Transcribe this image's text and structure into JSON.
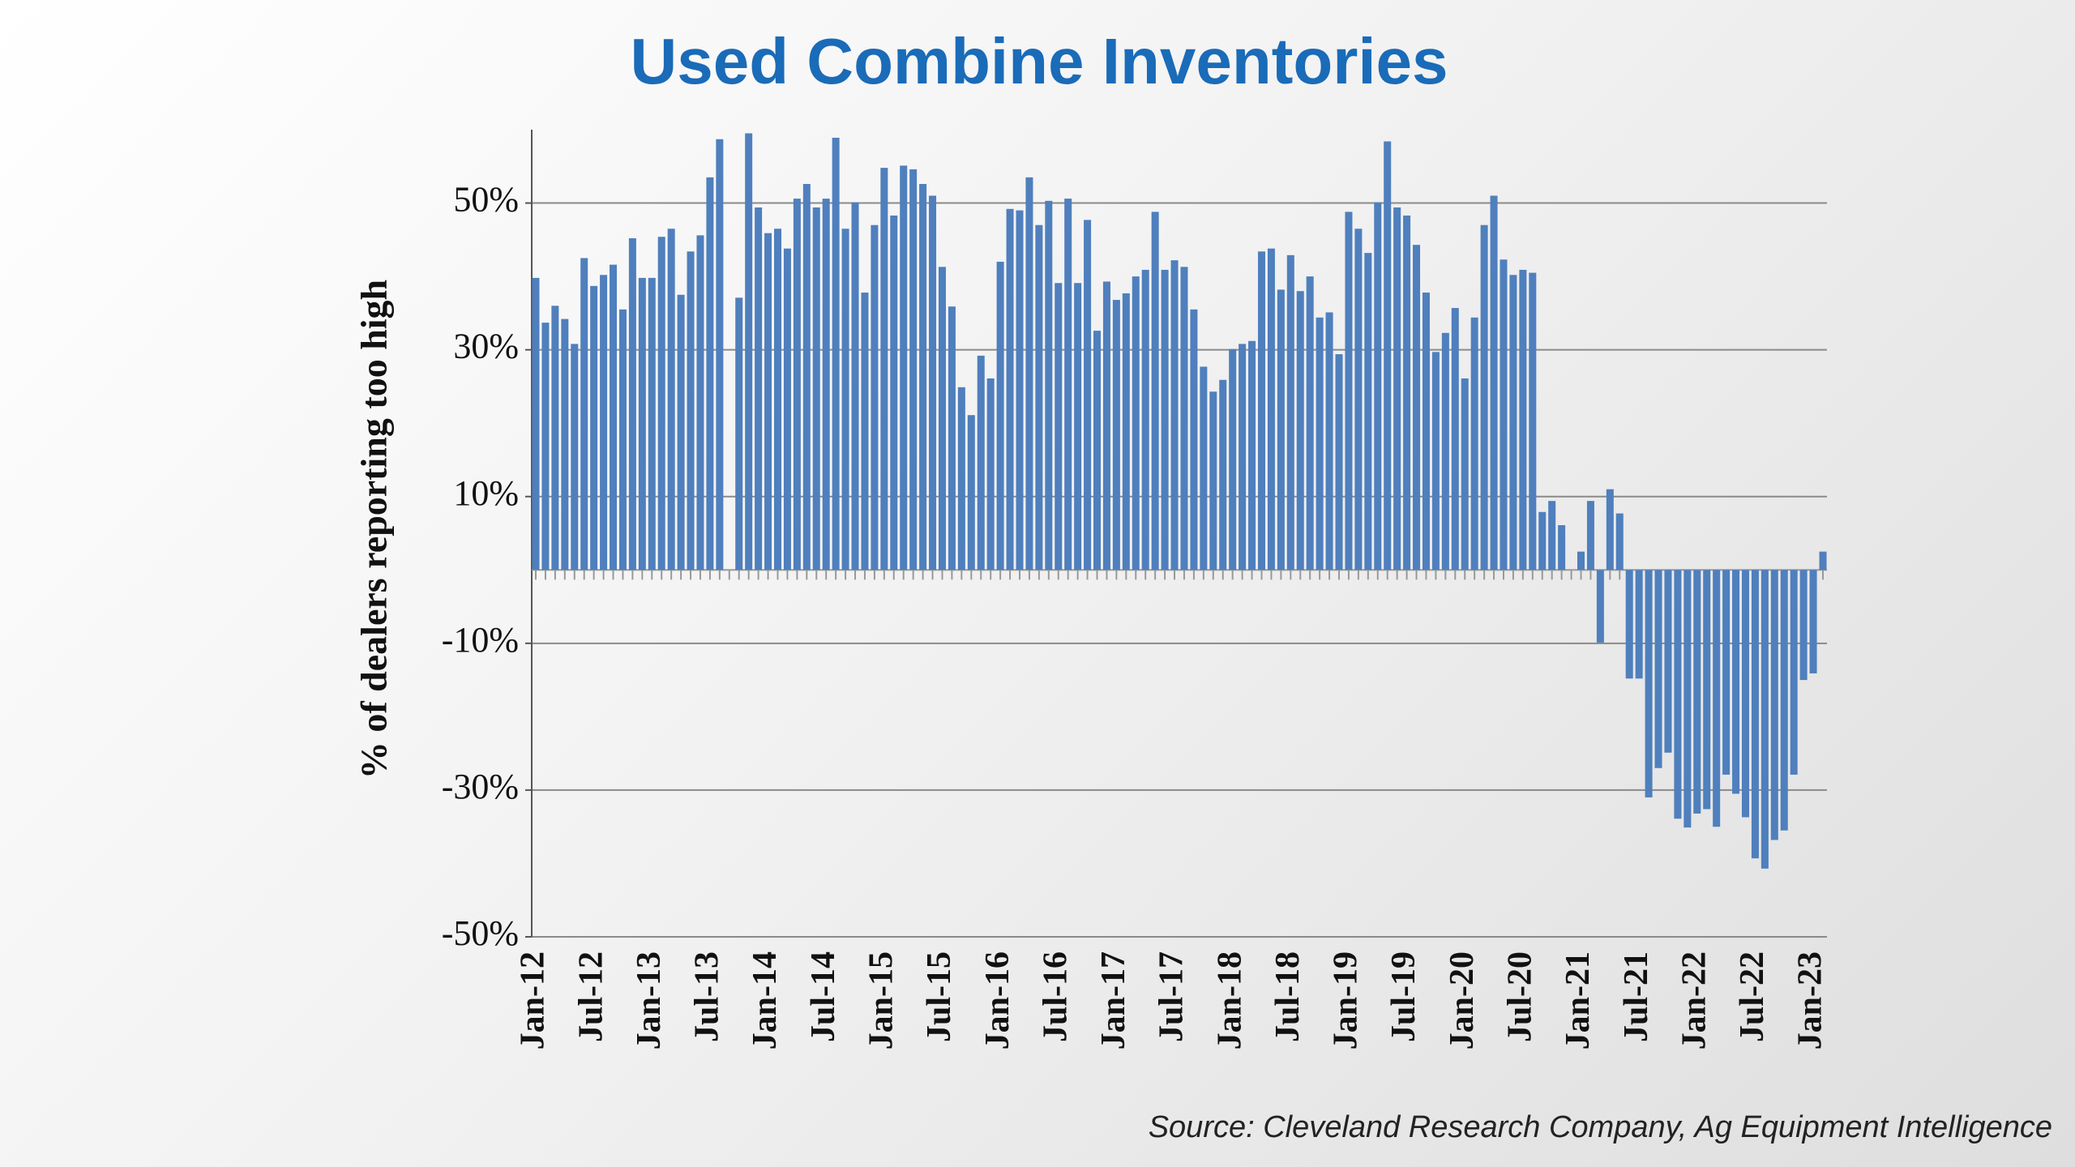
{
  "chart_data": {
    "type": "bar",
    "title": "Used Combine Inventories",
    "y_label": "% of dealers reporting too high",
    "source": "Source: Cleveland Research Company, Ag Equipment Intelligence",
    "color": "#4f7fbd",
    "grid": true,
    "ylim": [
      -50,
      60
    ],
    "yticks": [
      {
        "value": -50,
        "label": "-50%"
      },
      {
        "value": -30,
        "label": "-30%"
      },
      {
        "value": -10,
        "label": "-10%"
      },
      {
        "value": 10,
        "label": "10%"
      },
      {
        "value": 30,
        "label": "30%"
      },
      {
        "value": 50,
        "label": "50%"
      }
    ],
    "categories": [
      "Jan-12",
      null,
      null,
      null,
      null,
      null,
      "Jul-12",
      null,
      null,
      null,
      null,
      null,
      "Jan-13",
      null,
      null,
      null,
      null,
      null,
      "Jul-13",
      null,
      null,
      null,
      null,
      null,
      "Jan-14",
      null,
      null,
      null,
      null,
      null,
      "Jul-14",
      null,
      null,
      null,
      null,
      null,
      "Jan-15",
      null,
      null,
      null,
      null,
      null,
      "Jul-15",
      null,
      null,
      null,
      null,
      null,
      "Jan-16",
      null,
      null,
      null,
      null,
      null,
      "Jul-16",
      null,
      null,
      null,
      null,
      null,
      "Jan-17",
      null,
      null,
      null,
      null,
      null,
      "Jul-17",
      null,
      null,
      null,
      null,
      null,
      "Jan-18",
      null,
      null,
      null,
      null,
      null,
      "Jul-18",
      null,
      null,
      null,
      null,
      null,
      "Jan-19",
      null,
      null,
      null,
      null,
      null,
      "Jul-19",
      null,
      null,
      null,
      null,
      null,
      "Jan-20",
      null,
      null,
      null,
      null,
      null,
      "Jul-20",
      null,
      null,
      null,
      null,
      null,
      "Jan-21",
      null,
      null,
      null,
      null,
      null,
      "Jul-21",
      null,
      null,
      null,
      null,
      null,
      "Jan-22",
      null,
      null,
      null,
      null,
      null,
      "Jul-22",
      null,
      null,
      null,
      null,
      null,
      "Jan-23",
      null
    ],
    "values": [
      39.8,
      33.7,
      36,
      34.2,
      30.8,
      42.5,
      38.7,
      40.2,
      41.6,
      35.5,
      45.2,
      39.8,
      39.8,
      45.4,
      46.5,
      37.5,
      43.4,
      45.6,
      53.5,
      58.7,
      0,
      37.1,
      59.5,
      49.4,
      45.9,
      46.5,
      43.8,
      50.6,
      52.6,
      49.4,
      50.6,
      58.9,
      46.5,
      50.1,
      37.8,
      47,
      54.8,
      48.3,
      55.1,
      54.6,
      52.6,
      51,
      41.3,
      35.9,
      24.9,
      21.1,
      29.2,
      26.1,
      42,
      49.2,
      49,
      53.5,
      47,
      50.3,
      39.1,
      50.6,
      39.1,
      47.7,
      32.6,
      39.3,
      36.8,
      37.7,
      40,
      40.9,
      48.8,
      40.9,
      42.2,
      41.3,
      35.5,
      27.7,
      24.3,
      25.9,
      30.1,
      30.8,
      31.2,
      43.4,
      43.8,
      38.2,
      42.9,
      38,
      40,
      34.4,
      35.1,
      29.4,
      48.8,
      46.5,
      43.2,
      50.1,
      58.4,
      49.4,
      48.3,
      44.3,
      37.8,
      29.7,
      32.3,
      35.7,
      26.1,
      34.4,
      47,
      51,
      42.3,
      40.2,
      40.9,
      40.5,
      7.9,
      9.4,
      6.1,
      0,
      2.5,
      9.4,
      -9.9,
      11,
      7.7,
      -14.8,
      -14.8,
      -31,
      -27,
      -24.9,
      -33.9,
      -35.1,
      -33.2,
      -32.6,
      -35,
      -27.9,
      -30.5,
      -33.7,
      -39.3,
      -40.7,
      -36.8,
      -35.5,
      -27.9,
      -15,
      -14.1,
      2.5
    ]
  }
}
